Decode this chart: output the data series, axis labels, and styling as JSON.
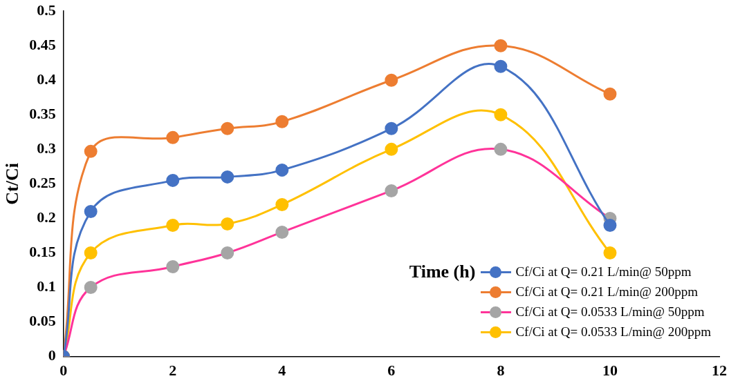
{
  "chart_data": {
    "type": "line",
    "xlabel": "Time (h)",
    "ylabel": "Ct/Ci",
    "x": [
      0,
      0.5,
      2,
      3,
      4,
      6,
      8,
      10
    ],
    "xlim": [
      0,
      12
    ],
    "xticks": [
      0,
      2,
      4,
      6,
      8,
      10,
      12
    ],
    "ylim": [
      0,
      0.5
    ],
    "yticks": [
      0,
      0.05,
      0.1,
      0.15,
      0.2,
      0.25,
      0.3,
      0.35,
      0.4,
      0.45,
      0.5
    ],
    "grid": false,
    "legend": "bottom right",
    "marker": "circle",
    "series": [
      {
        "name": "Cf/Ci at Q= 0.21 L/min@ 50ppm",
        "color": "#4472c4",
        "values": [
          0,
          0.21,
          0.255,
          0.26,
          0.27,
          0.33,
          0.42,
          0.19
        ]
      },
      {
        "name": "Cf/Ci at Q= 0.21 L/min@ 200ppm",
        "color": "#ed7d31",
        "values": [
          0,
          0.297,
          0.317,
          0.33,
          0.34,
          0.4,
          0.45,
          0.38
        ]
      },
      {
        "name": "Cf/Ci at Q= 0.0533 L/min@ 50ppm",
        "color": "#ff3399",
        "colors": [
          "#a5a5a5",
          "#a5a5a5",
          "#a5a5a5",
          "#a5a5a5",
          "#a5a5a5",
          "#a5a5a5",
          "#a5a5a5",
          "#a5a5a5"
        ],
        "values": [
          0,
          0.1,
          0.13,
          0.15,
          0.18,
          0.24,
          0.3,
          0.2
        ]
      },
      {
        "name": "Cf/Ci at Q= 0.0533 L/min@ 200ppm",
        "color": "#ffc000",
        "values": [
          0,
          0.15,
          0.19,
          0.192,
          0.22,
          0.3,
          0.35,
          0.15
        ]
      }
    ]
  }
}
